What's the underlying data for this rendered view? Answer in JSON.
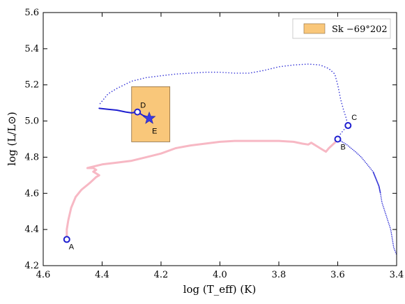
{
  "chart_data": {
    "type": "scatter",
    "title": "",
    "xlabel": "log (T_eff) (K)",
    "ylabel": "log (L/L⊙)",
    "xlim": [
      4.6,
      3.4
    ],
    "ylim": [
      4.2,
      5.6
    ],
    "x_inverted": true,
    "xticks": [
      "4.6",
      "4.4",
      "4.2",
      "4.0",
      "3.8",
      "3.6",
      "3.4"
    ],
    "yticks": [
      "4.2",
      "4.4",
      "4.6",
      "4.8",
      "5.0",
      "5.2",
      "5.4",
      "5.6"
    ],
    "legend": {
      "position": "top-right",
      "label": "Sk −69°202"
    },
    "colors": {
      "pink_track": "#f7b8c4",
      "blue_track": "#3a3ad8",
      "marker": "#1f1fd0",
      "box_fill": "#f9c77a",
      "box_edge": "#8a6a40"
    },
    "series": [
      {
        "points": [
          [
            4.52,
            4.35
          ],
          [
            4.52,
            4.4
          ],
          [
            4.515,
            4.45
          ],
          [
            4.505,
            4.52
          ],
          [
            4.49,
            4.58
          ],
          [
            4.47,
            4.62
          ],
          [
            4.44,
            4.66
          ],
          [
            4.42,
            4.69
          ],
          [
            4.41,
            4.7
          ],
          [
            4.43,
            4.72
          ],
          [
            4.42,
            4.73
          ],
          [
            4.43,
            4.74
          ],
          [
            4.45,
            4.74
          ],
          [
            4.4,
            4.76
          ],
          [
            4.35,
            4.77
          ],
          [
            4.3,
            4.78
          ],
          [
            4.25,
            4.8
          ],
          [
            4.2,
            4.82
          ],
          [
            4.15,
            4.85
          ],
          [
            4.1,
            4.865
          ],
          [
            4.05,
            4.875
          ],
          [
            4.0,
            4.885
          ],
          [
            3.95,
            4.89
          ],
          [
            3.9,
            4.89
          ],
          [
            3.85,
            4.89
          ],
          [
            3.8,
            4.89
          ],
          [
            3.75,
            4.885
          ],
          [
            3.72,
            4.875
          ],
          [
            3.7,
            4.87
          ],
          [
            3.69,
            4.88
          ],
          [
            3.68,
            4.87
          ],
          [
            3.67,
            4.86
          ],
          [
            3.66,
            4.85
          ],
          [
            3.65,
            4.84
          ],
          [
            3.64,
            4.83
          ],
          [
            3.63,
            4.85
          ],
          [
            3.61,
            4.88
          ],
          [
            3.6,
            4.9
          ]
        ]
      },
      {
        "points": [
          [
            3.6,
            4.9
          ],
          [
            3.59,
            4.93
          ],
          [
            3.575,
            4.96
          ],
          [
            3.565,
            4.975
          ],
          [
            3.572,
            5.02
          ],
          [
            3.58,
            5.06
          ],
          [
            3.59,
            5.12
          ],
          [
            3.6,
            5.2
          ],
          [
            3.61,
            5.26
          ],
          [
            3.63,
            5.29
          ],
          [
            3.66,
            5.31
          ],
          [
            3.7,
            5.315
          ],
          [
            3.75,
            5.31
          ],
          [
            3.8,
            5.3
          ],
          [
            3.85,
            5.28
          ],
          [
            3.9,
            5.265
          ],
          [
            3.95,
            5.265
          ],
          [
            4.0,
            5.27
          ],
          [
            4.05,
            5.27
          ],
          [
            4.1,
            5.265
          ],
          [
            4.15,
            5.26
          ],
          [
            4.2,
            5.25
          ],
          [
            4.25,
            5.24
          ],
          [
            4.3,
            5.22
          ],
          [
            4.35,
            5.18
          ],
          [
            4.38,
            5.15
          ],
          [
            4.4,
            5.11
          ],
          [
            4.41,
            5.09
          ]
        ]
      },
      {
        "points": [
          [
            3.6,
            4.9
          ],
          [
            3.57,
            4.87
          ],
          [
            3.54,
            4.83
          ],
          [
            3.52,
            4.8
          ],
          [
            3.5,
            4.76
          ],
          [
            3.48,
            4.72
          ],
          [
            3.47,
            4.68
          ],
          [
            3.46,
            4.64
          ],
          [
            3.455,
            4.6
          ],
          [
            3.45,
            4.55
          ],
          [
            3.44,
            4.5
          ],
          [
            3.43,
            4.45
          ],
          [
            3.42,
            4.4
          ],
          [
            3.415,
            4.35
          ],
          [
            3.41,
            4.3
          ],
          [
            3.4,
            4.26
          ]
        ]
      },
      {
        "points": [
          [
            4.41,
            5.07
          ],
          [
            4.38,
            5.065
          ],
          [
            4.35,
            5.06
          ],
          [
            4.32,
            5.05
          ],
          [
            4.3,
            5.045
          ],
          [
            4.28,
            5.05
          ],
          [
            4.26,
            5.03
          ],
          [
            4.24,
            5.02
          ]
        ]
      }
    ],
    "points": [
      {
        "label": "A",
        "x": 4.52,
        "y": 4.345
      },
      {
        "label": "B",
        "x": 3.6,
        "y": 4.9
      },
      {
        "label": "C",
        "x": 3.565,
        "y": 4.975
      },
      {
        "label": "D",
        "x": 4.28,
        "y": 5.05
      },
      {
        "label": "E",
        "x": 4.24,
        "y": 5.015
      }
    ],
    "region": {
      "label": "Sk −69°202",
      "xmin": 4.17,
      "xmax": 4.3,
      "ymin": 4.885,
      "ymax": 5.19
    }
  }
}
